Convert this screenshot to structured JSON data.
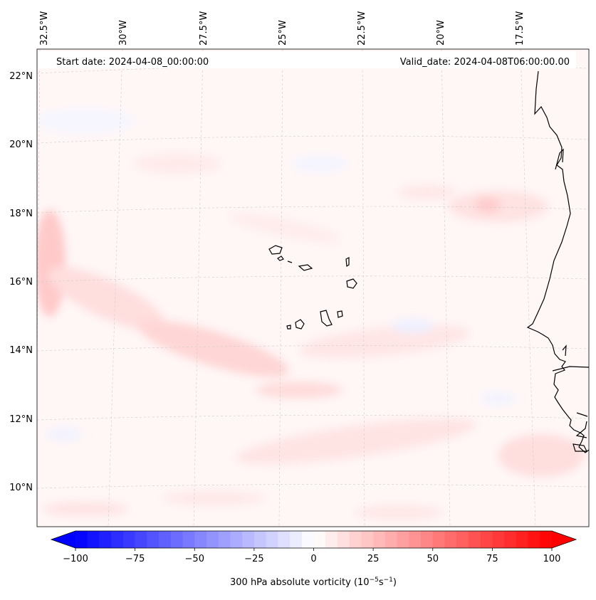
{
  "header": {
    "start_date": "Start date: 2024-04-08_00:00:00",
    "valid_date": "Valid_date: 2024-04-08T06:00:00.00"
  },
  "lon_labels": [
    "32.5°W",
    "30°W",
    "27.5°W",
    "25°W",
    "22.5°W",
    "20°W",
    "17.5°W"
  ],
  "lat_labels": [
    "22°N",
    "20°N",
    "18°N",
    "16°N",
    "14°N",
    "12°N",
    "10°N"
  ],
  "colorbar": {
    "min": -100,
    "max": 100,
    "tick_values": [
      -100,
      -75,
      -50,
      -25,
      0,
      25,
      50,
      75,
      100
    ],
    "tick_labels": [
      "−100",
      "−75",
      "−50",
      "−25",
      "0",
      "25",
      "50",
      "75",
      "100"
    ],
    "label_main": "300 hPa absolute vorticity (10",
    "label_exp1": "−5",
    "label_mid": "s",
    "label_exp2": "−1",
    "label_end": ")",
    "colors": {
      "negative": "#0000ff",
      "neutral": "#ffffff",
      "positive": "#ff0000"
    }
  }
}
